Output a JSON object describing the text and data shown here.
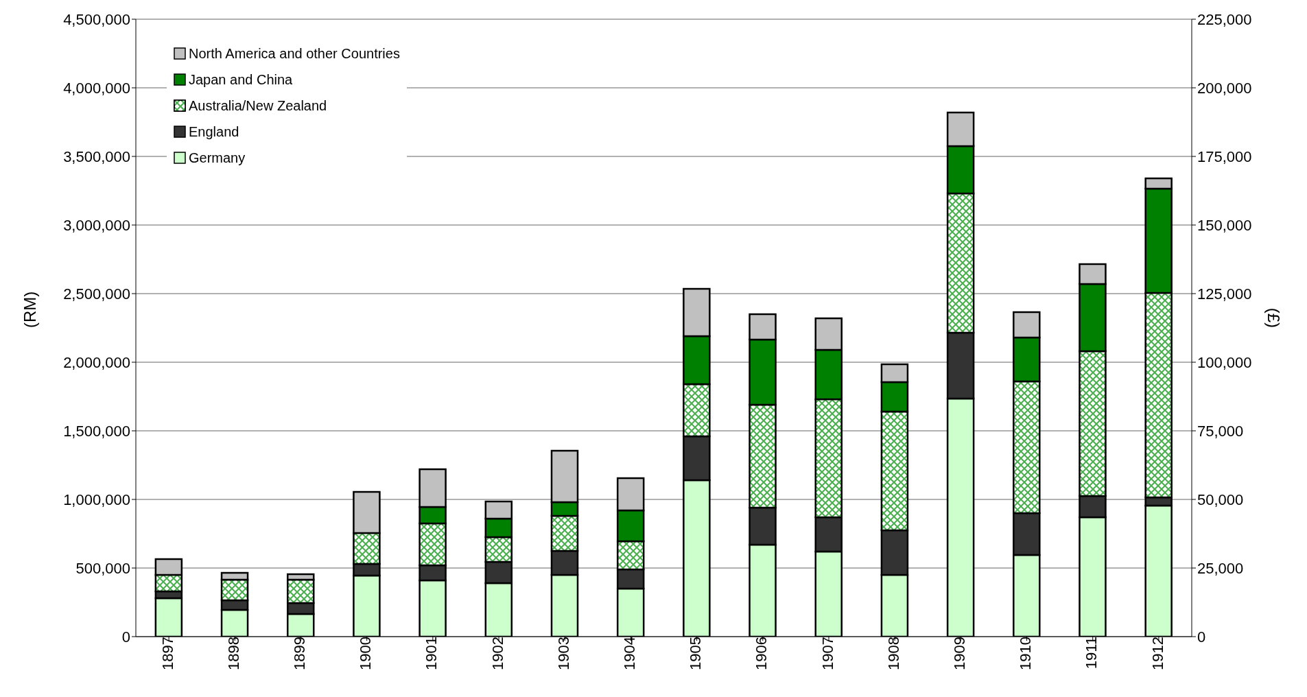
{
  "chart_data": {
    "type": "bar",
    "stacked": true,
    "ylabel": "(RM)",
    "y2label": "(£)",
    "categories": [
      "1897",
      "1898",
      "1899",
      "1900",
      "1901",
      "1902",
      "1903",
      "1904",
      "1905",
      "1906",
      "1907",
      "1908",
      "1909",
      "1910",
      "1911",
      "1912"
    ],
    "series": [
      {
        "name": "Germany",
        "color": "#ccffcc",
        "values": [
          280000,
          195000,
          165000,
          445000,
          410000,
          390000,
          450000,
          350000,
          1140000,
          670000,
          620000,
          450000,
          1735000,
          595000,
          870000,
          955000
        ]
      },
      {
        "name": "England",
        "color": "#333333",
        "values": [
          50000,
          70000,
          80000,
          85000,
          110000,
          155000,
          175000,
          140000,
          320000,
          270000,
          250000,
          325000,
          480000,
          305000,
          155000,
          60000
        ]
      },
      {
        "name": "Australia/New Zealand",
        "color": "#4caf50",
        "values": [
          120000,
          150000,
          170000,
          225000,
          305000,
          180000,
          255000,
          205000,
          380000,
          750000,
          860000,
          865000,
          1015000,
          960000,
          1055000,
          1490000
        ]
      },
      {
        "name": "Japan and China",
        "color": "#008000",
        "values": [
          0,
          0,
          0,
          0,
          120000,
          135000,
          100000,
          225000,
          350000,
          475000,
          360000,
          215000,
          345000,
          320000,
          490000,
          760000
        ]
      },
      {
        "name": "North America and other Countries",
        "color": "#c0c0c0",
        "values": [
          115000,
          50000,
          40000,
          300000,
          275000,
          125000,
          375000,
          235000,
          345000,
          185000,
          230000,
          130000,
          245000,
          185000,
          145000,
          75000
        ]
      }
    ],
    "ylim": [
      0,
      4500000
    ],
    "yticks": [
      0,
      {
        "value": 500000,
        "label": "500,000"
      },
      {
        "value": 1000000,
        "label": "1,000,000"
      },
      {
        "value": 1500000,
        "label": "1,500,000"
      },
      {
        "value": 2000000,
        "label": "2,000,000"
      },
      {
        "value": 2500000,
        "label": "2,500,000"
      },
      {
        "value": 3000000,
        "label": "3,000,000"
      },
      {
        "value": 3500000,
        "label": "3,500,000"
      },
      {
        "value": 4000000,
        "label": "4,000,000"
      },
      {
        "value": 4500000,
        "label": "4,500,000"
      }
    ],
    "y2lim": [
      0,
      225000
    ],
    "y2ticks": [
      0,
      {
        "value": 25000,
        "label": "25,000"
      },
      {
        "value": 50000,
        "label": "50,000"
      },
      {
        "value": 75000,
        "label": "75,000"
      },
      {
        "value": 100000,
        "label": "100,000"
      },
      {
        "value": 125000,
        "label": "125,000"
      },
      {
        "value": 150000,
        "label": "150,000"
      },
      {
        "value": 175000,
        "label": "175,000"
      },
      {
        "value": 200000,
        "label": "200,000"
      },
      {
        "value": 225000,
        "label": "225,000"
      }
    ],
    "grid": "y",
    "legend": "top left"
  }
}
